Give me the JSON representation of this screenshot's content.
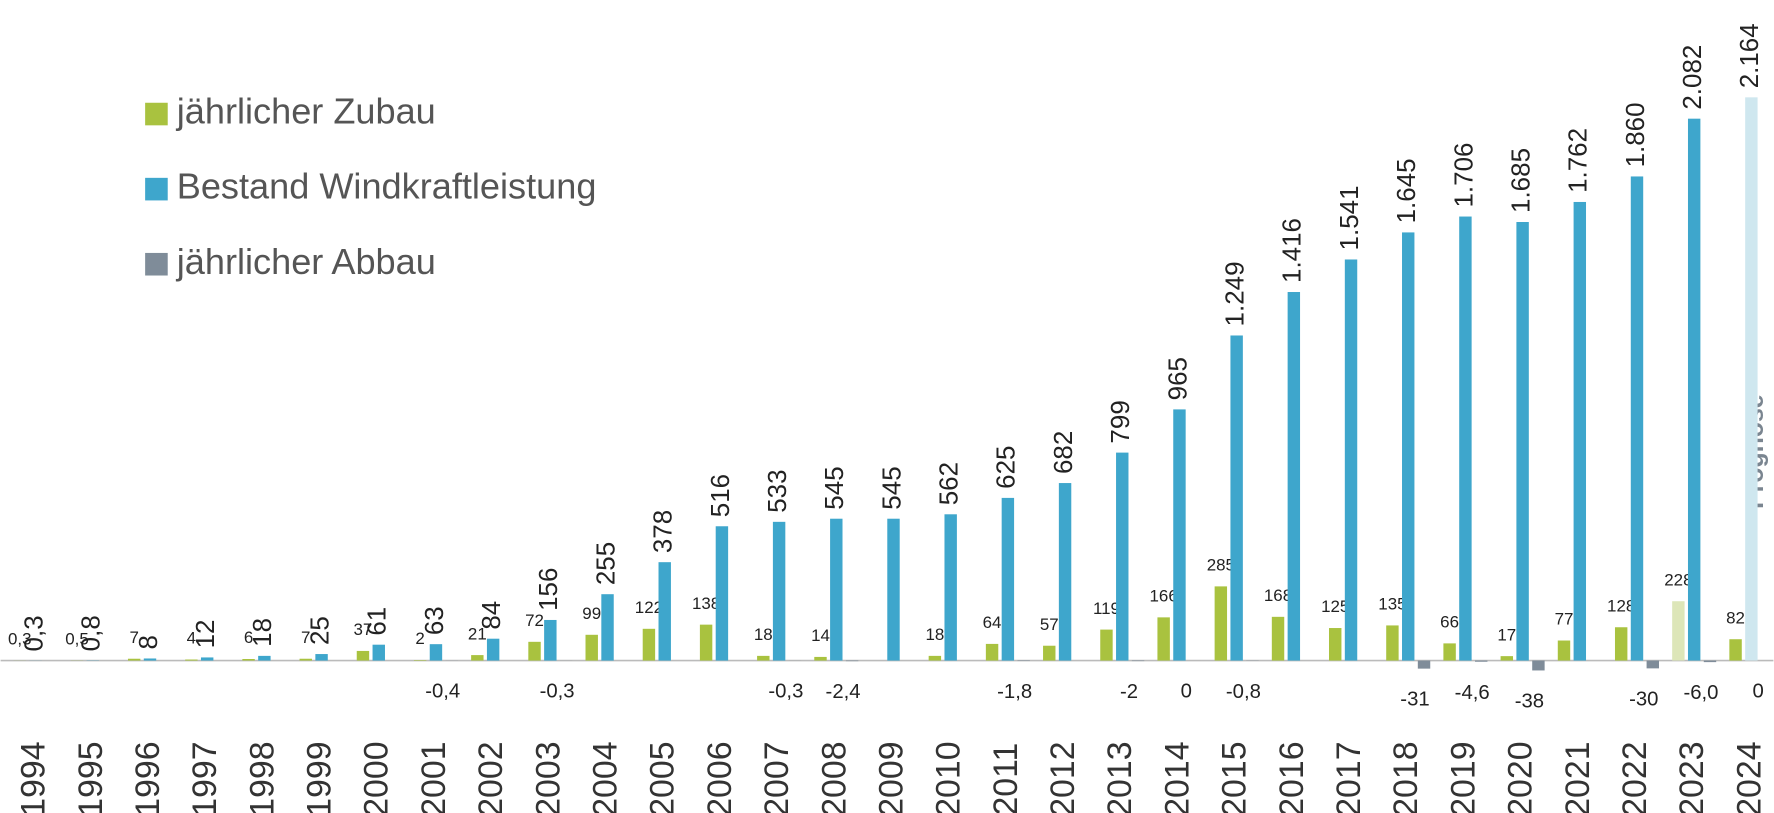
{
  "chart_data": {
    "type": "bar",
    "categories": [
      "1994",
      "1995",
      "1996",
      "1997",
      "1998",
      "1999",
      "2000",
      "2001",
      "2002",
      "2003",
      "2004",
      "2005",
      "2006",
      "2007",
      "2008",
      "2009",
      "2010",
      "2011",
      "2012",
      "2013",
      "2014",
      "2015",
      "2016",
      "2017",
      "2018",
      "2019",
      "2020",
      "2021",
      "2022",
      "2023",
      "2024"
    ],
    "series": [
      {
        "name": "jährlicher Zubau",
        "color": "#a9c23f",
        "colors": [
          null,
          null,
          null,
          null,
          null,
          null,
          null,
          null,
          null,
          null,
          null,
          null,
          null,
          null,
          null,
          null,
          null,
          null,
          null,
          null,
          null,
          null,
          null,
          null,
          null,
          null,
          null,
          null,
          null,
          "#dde6b8",
          null
        ],
        "values": [
          0.3,
          0.5,
          7,
          4,
          6,
          7,
          37,
          2,
          21,
          72,
          99,
          122,
          138,
          18,
          14,
          null,
          18,
          64,
          57,
          119,
          166,
          285,
          168,
          125,
          135,
          66,
          17,
          77,
          128,
          228,
          82
        ],
        "value_labels": [
          "0,3",
          "0,5",
          "7",
          "4",
          "6",
          "7",
          "37",
          "2",
          "21",
          "72",
          "99",
          "122",
          "138",
          "18",
          "14",
          null,
          "18",
          "64",
          "57",
          "119",
          "166",
          "285",
          "168",
          "125",
          "135",
          "66",
          "17",
          "77",
          "128",
          "228",
          "82"
        ]
      },
      {
        "name": "Bestand Windkraftleistung",
        "color": "#3ea6cc",
        "colors": [
          null,
          null,
          null,
          null,
          null,
          null,
          null,
          null,
          null,
          null,
          null,
          null,
          null,
          null,
          null,
          null,
          null,
          null,
          null,
          null,
          null,
          null,
          null,
          null,
          null,
          null,
          null,
          null,
          null,
          null,
          "#cfe7ef"
        ],
        "values": [
          0.3,
          0.8,
          8,
          12,
          18,
          25,
          61,
          63,
          84,
          156,
          255,
          378,
          516,
          533,
          545,
          545,
          562,
          625,
          682,
          799,
          965,
          1249,
          1416,
          1541,
          1645,
          1706,
          1685,
          1762,
          1860,
          2082,
          2164
        ],
        "value_labels": [
          "0,3",
          "0,8",
          "8",
          "12",
          "18",
          "25",
          "61",
          "63",
          "84",
          "156",
          "255",
          "378",
          "516",
          "533",
          "545",
          "545",
          "562",
          "625",
          "682",
          "799",
          "965",
          "1.249",
          "1.416",
          "1.541",
          "1.645",
          "1.706",
          "1.685",
          "1.762",
          "1.860",
          "2.082",
          "2.164"
        ]
      },
      {
        "name": "jährlicher Abbau",
        "color": "#7f8c99",
        "values": [
          null,
          null,
          null,
          null,
          null,
          null,
          null,
          -0.4,
          null,
          -0.3,
          null,
          null,
          null,
          -0.3,
          -2.4,
          null,
          null,
          -1.8,
          null,
          -2,
          0,
          -0.8,
          null,
          null,
          -31,
          -4.6,
          -38,
          null,
          -30,
          -6.0,
          0
        ],
        "value_labels": [
          null,
          null,
          null,
          null,
          null,
          null,
          null,
          "-0,4",
          null,
          "-0,3",
          null,
          null,
          null,
          "-0,3",
          "-2,4",
          null,
          null,
          "-1,8",
          null,
          "-2",
          "0",
          "-0,8",
          null,
          null,
          "-31",
          "-4,6",
          "-38",
          null,
          "-30",
          "-6,0",
          "0"
        ]
      }
    ],
    "prognosis_label": "Prognose"
  }
}
